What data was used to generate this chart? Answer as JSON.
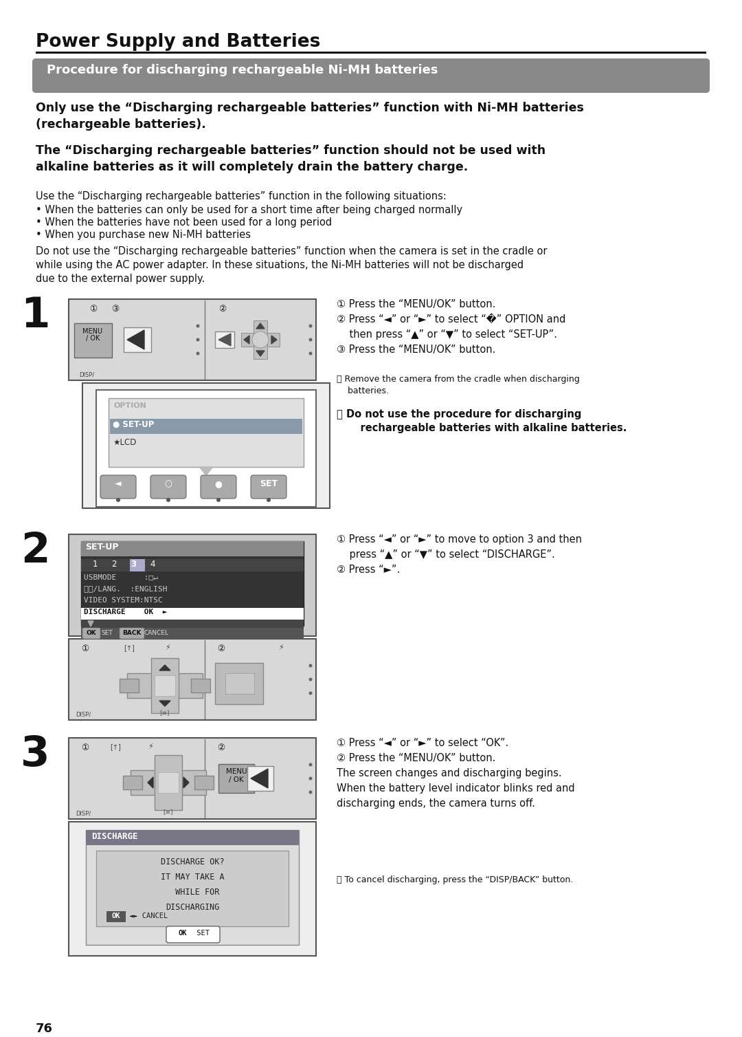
{
  "page_title": "Power Supply and Batteries",
  "section_title": "Procedure for discharging rechargeable Ni-MH batteries",
  "bold_text1": "Only use the “Discharging rechargeable batteries” function with Ni-MH batteries\n(rechargeable batteries).",
  "bold_text2": "The “Discharging rechargeable batteries” function should not be used with\nalkaline batteries as it will completely drain the battery charge.",
  "intro_text": "Use the “Discharging rechargeable batteries” function in the following situations:",
  "bullets": [
    "• When the batteries can only be used for a short time after being charged normally",
    "• When the batteries have not been used for a long period",
    "• When you purchase new Ni-MH batteries"
  ],
  "warning_text": "Do not use the “Discharging rechargeable batteries” function when the camera is set in the cradle or\nwhile using the AC power adapter. In these situations, the Ni-MH batteries will not be discharged\ndue to the external power supply.",
  "step1_instr": [
    "① Press the “MENU/OK” button.",
    "② Press “◄” or “►” to select “�” OPTION and",
    "    then press “▲” or “▼” to select “SET-UP”.",
    "③ Press the “MENU/OK” button."
  ],
  "step1_note1": "Ⓟ Remove the camera from the cradle when discharging\n    batteries.",
  "step1_note2_normal": "Ⓟ ",
  "step1_note2_bold": "Do not use the procedure for discharging\n    rechargeable batteries with alkaline batteries.",
  "step2_instr": [
    "① Press “◄” or “►” to move to option 3 and then",
    "    press “▲” or “▼” to select “DISCHARGE”.",
    "② Press “►”."
  ],
  "step3_instr": [
    "① Press “◄” or “►” to select “OK”.",
    "② Press the “MENU/OK” button.",
    "The screen changes and discharging begins.",
    "When the battery level indicator blinks red and",
    "discharging ends, the camera turns off."
  ],
  "step3_note": "Ⓟ To cancel discharging, press the “DISP/BACK” button.",
  "page_number": "76",
  "bg_color": "#ffffff",
  "body_color": "#111111"
}
